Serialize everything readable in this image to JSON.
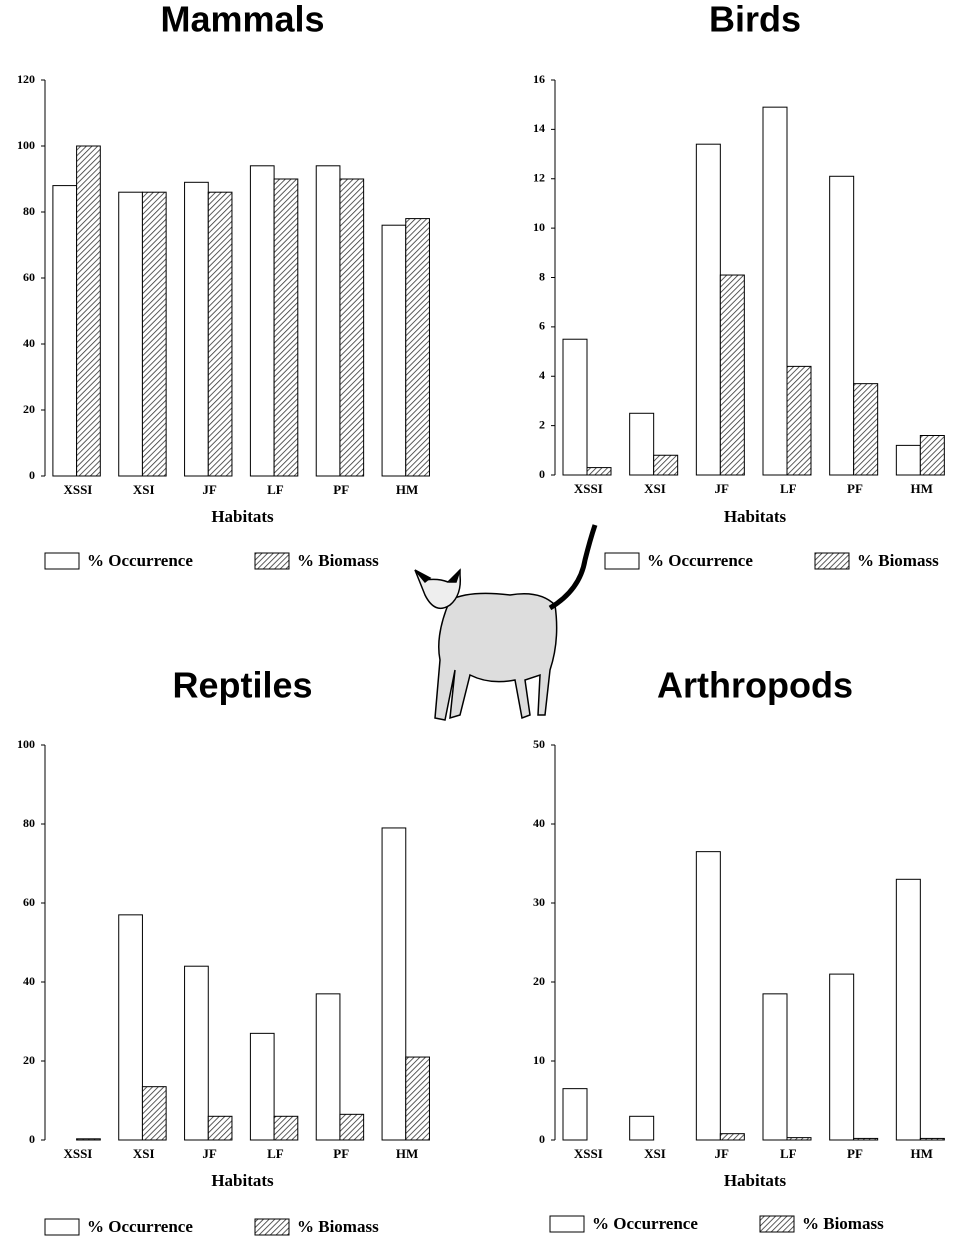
{
  "chart_data": [
    {
      "type": "bar",
      "title": "Mammals",
      "xlabel": "Habitats",
      "categories": [
        "XSSI",
        "XSI",
        "JF",
        "LF",
        "PF",
        "HM"
      ],
      "series": [
        {
          "name": "% Occurrence",
          "color": "#ffffff",
          "values": [
            88,
            86,
            89,
            94,
            94,
            76
          ]
        },
        {
          "name": "% Biomass",
          "color": "#777777",
          "pattern": "hatch",
          "values": [
            100,
            86,
            86,
            90,
            90,
            78
          ]
        }
      ],
      "ylim": [
        0,
        120
      ],
      "yticks": [
        0,
        20,
        40,
        60,
        80,
        100,
        120
      ]
    },
    {
      "type": "bar",
      "title": "Birds",
      "xlabel": "Habitats",
      "categories": [
        "XSSI",
        "XSI",
        "JF",
        "LF",
        "PF",
        "HM"
      ],
      "series": [
        {
          "name": "% Occurrence",
          "color": "#ffffff",
          "values": [
            5.5,
            2.5,
            13.4,
            14.9,
            12.1,
            1.2
          ]
        },
        {
          "name": "% Biomass",
          "color": "#777777",
          "pattern": "hatch",
          "values": [
            0.3,
            0.8,
            8.1,
            4.4,
            3.7,
            1.6
          ]
        }
      ],
      "ylim": [
        0,
        16
      ],
      "yticks": [
        0,
        2,
        4,
        6,
        8,
        10,
        12,
        14,
        16
      ]
    },
    {
      "type": "bar",
      "title": "Reptiles",
      "xlabel": "Habitats",
      "categories": [
        "XSSI",
        "XSI",
        "JF",
        "LF",
        "PF",
        "HM"
      ],
      "series": [
        {
          "name": "% Occurrence",
          "color": "#ffffff",
          "values": [
            0,
            57,
            44,
            27,
            37,
            79
          ]
        },
        {
          "name": "% Biomass",
          "color": "#777777",
          "pattern": "hatch",
          "values": [
            0.3,
            13.5,
            6,
            6,
            6.5,
            21
          ]
        }
      ],
      "ylim": [
        0,
        100
      ],
      "yticks": [
        0,
        20,
        40,
        60,
        80,
        100
      ]
    },
    {
      "type": "bar",
      "title": "Arthropods",
      "xlabel": "Habitats",
      "categories": [
        "XSSI",
        "XSI",
        "JF",
        "LF",
        "PF",
        "HM"
      ],
      "series": [
        {
          "name": "% Occurrence",
          "color": "#ffffff",
          "values": [
            6.5,
            3,
            36.5,
            18.5,
            21,
            33
          ]
        },
        {
          "name": "% Biomass",
          "color": "#777777",
          "pattern": "hatch",
          "values": [
            0,
            0,
            0.8,
            0.3,
            0.2,
            0.2
          ]
        }
      ],
      "ylim": [
        0,
        50
      ],
      "yticks": [
        0,
        10,
        20,
        30,
        40,
        50
      ]
    }
  ]
}
